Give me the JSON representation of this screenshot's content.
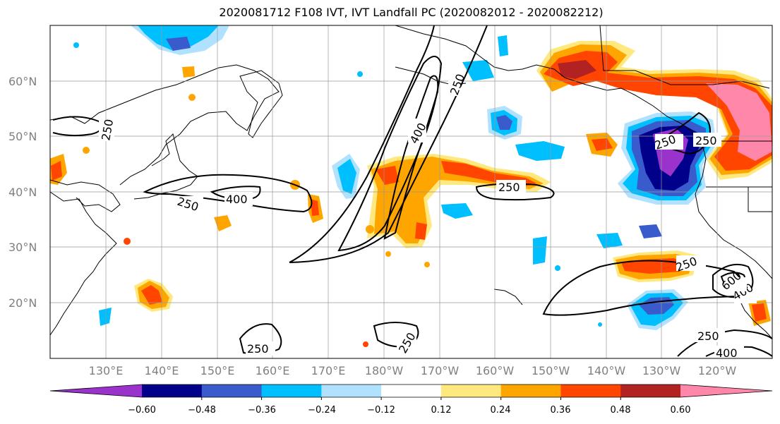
{
  "title": "2020081712 F108 IVT, IVT Landfall PC (2020082012 - 2020082212)",
  "lat_labels": [
    "60°N",
    "50°N",
    "40°N",
    "30°N",
    "20°N"
  ],
  "lon_labels": [
    "130°E",
    "140°E",
    "150°E",
    "160°E",
    "170°E",
    "180°W",
    "170°W",
    "160°W",
    "150°W",
    "140°W",
    "130°W",
    "120°W"
  ],
  "colorbar": {
    "ticks": [
      "−0.60",
      "−0.48",
      "−0.36",
      "−0.24",
      "−0.12",
      "0.12",
      "0.24",
      "0.36",
      "0.48",
      "0.60"
    ],
    "colors": [
      "#9933cc",
      "#00008b",
      "#3a5bcc",
      "#00bfff",
      "#b0e2ff",
      "#ffffff",
      "#ffe97f",
      "#ffa500",
      "#ff4500",
      "#b22222",
      "#ff88aa"
    ]
  },
  "contour_labels": [
    "250",
    "250",
    "400",
    "250",
    "400",
    "250",
    "250",
    "250",
    "250",
    "250",
    "400",
    "600",
    "250",
    "400",
    "250"
  ]
}
